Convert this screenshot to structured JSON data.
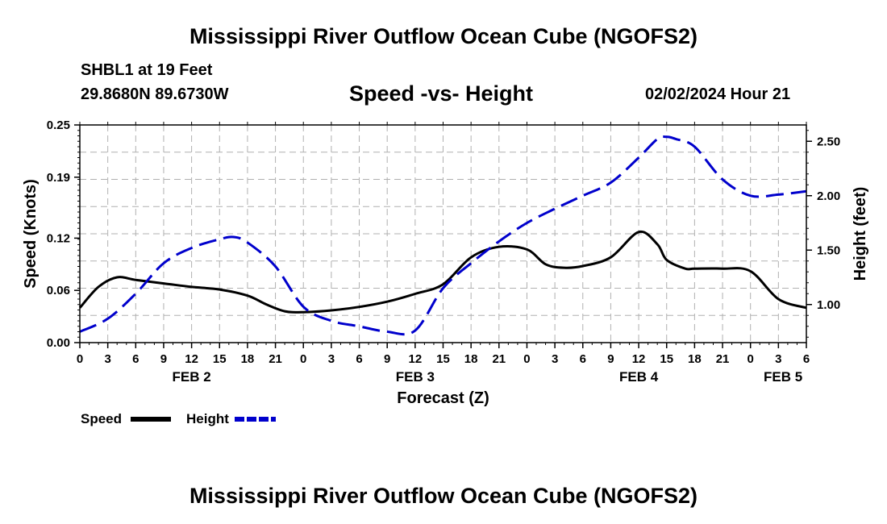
{
  "header": {
    "title_top": "Mississippi River Outflow Ocean Cube (NGOFS2)",
    "station": "SHBL1 at 19 Feet",
    "coords": "29.8680N  89.6730W",
    "subtitle": "Speed -vs- Height",
    "datetime": "02/02/2024 Hour 21",
    "title_bottom": "Mississippi River Outflow Ocean Cube (NGOFS2)"
  },
  "legend": {
    "speed_label": "Speed",
    "height_label": "Height",
    "speed_color": "#000000",
    "height_color": "#0000cc"
  },
  "chart_data": {
    "type": "line",
    "title": "Speed -vs- Height",
    "xlabel": "Forecast (Z)",
    "ylabel": "Speed (Knots)",
    "y2label": "Height (feet)",
    "xlim": [
      0,
      78
    ],
    "ylim": [
      0,
      0.25
    ],
    "y2lim": [
      0.65,
      2.65
    ],
    "x_ticks": [
      0,
      3,
      6,
      9,
      12,
      15,
      18,
      21,
      24,
      27,
      30,
      33,
      36,
      39,
      42,
      45,
      48,
      51,
      54,
      57,
      60,
      63,
      66,
      69,
      72,
      75,
      78
    ],
    "x_tick_labels": [
      "0",
      "3",
      "6",
      "9",
      "12",
      "15",
      "18",
      "21",
      "0",
      "3",
      "6",
      "9",
      "12",
      "15",
      "18",
      "21",
      "0",
      "3",
      "6",
      "9",
      "12",
      "15",
      "18",
      "21",
      "0",
      "3",
      "6"
    ],
    "date_labels": [
      {
        "x": 12,
        "label": "FEB 2"
      },
      {
        "x": 36,
        "label": "FEB 3"
      },
      {
        "x": 60,
        "label": "FEB 4"
      },
      {
        "x": 75.5,
        "label": "FEB 5"
      }
    ],
    "y_ticks": [
      0,
      0.06,
      0.12,
      0.19,
      0.25
    ],
    "y_tick_labels": [
      "0.00",
      "0.06",
      "0.12",
      "0.19",
      "0.25"
    ],
    "y2_ticks": [
      1.0,
      1.5,
      2.0,
      2.5
    ],
    "y2_tick_labels": [
      "1.00",
      "1.50",
      "2.00",
      "2.50"
    ],
    "grid": true,
    "series": [
      {
        "name": "Speed",
        "axis": "left",
        "style": "solid",
        "color": "#000000",
        "x": [
          0,
          2,
          4,
          6,
          9,
          12,
          15,
          18,
          20,
          22,
          24,
          27,
          30,
          33,
          36,
          39,
          42,
          45,
          48,
          50,
          52,
          54,
          57,
          60,
          62,
          63,
          65,
          66,
          69,
          72,
          75,
          78
        ],
        "y": [
          0.04,
          0.064,
          0.075,
          0.072,
          0.068,
          0.064,
          0.061,
          0.054,
          0.044,
          0.036,
          0.035,
          0.037,
          0.041,
          0.047,
          0.056,
          0.067,
          0.098,
          0.11,
          0.107,
          0.09,
          0.086,
          0.088,
          0.098,
          0.127,
          0.113,
          0.095,
          0.085,
          0.085,
          0.085,
          0.082,
          0.05,
          0.04
        ]
      },
      {
        "name": "Height",
        "axis": "right",
        "style": "dashed",
        "color": "#0000cc",
        "x": [
          0,
          3,
          6,
          9,
          12,
          15,
          16.5,
          18,
          21,
          24,
          27,
          30,
          33,
          36,
          39,
          42,
          45,
          48,
          51,
          54,
          57,
          60,
          62,
          63,
          64,
          66,
          69,
          72,
          75,
          78
        ],
        "y": [
          0.75,
          0.87,
          1.1,
          1.38,
          1.52,
          1.6,
          1.62,
          1.57,
          1.35,
          0.98,
          0.85,
          0.8,
          0.75,
          0.76,
          1.15,
          1.38,
          1.58,
          1.75,
          1.88,
          2.0,
          2.12,
          2.35,
          2.52,
          2.54,
          2.52,
          2.45,
          2.15,
          2.0,
          2.01,
          2.04
        ]
      }
    ]
  }
}
